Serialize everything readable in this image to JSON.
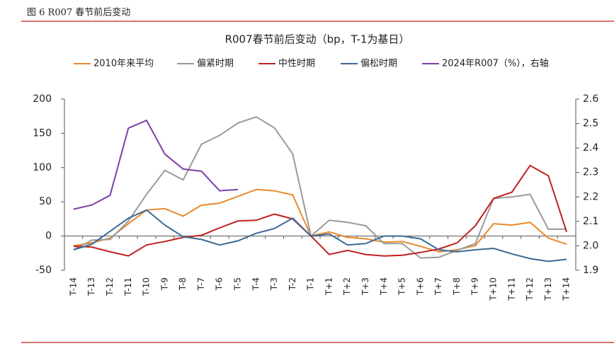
{
  "header": "图 6 R007 春节前后变动",
  "chart_data": {
    "type": "line",
    "title": "R007春节前后变动（bp，T-1为基日）",
    "categories": [
      "T-14",
      "T-13",
      "T-12",
      "T-11",
      "T-10",
      "T-9",
      "T-8",
      "T-7",
      "T-6",
      "T-5",
      "T-4",
      "T-3",
      "T-2",
      "T-1",
      "T+1",
      "T+2",
      "T+3",
      "T+4",
      "T+5",
      "T+6",
      "T+7",
      "T+8",
      "T+9",
      "T+10",
      "T+11",
      "T+12",
      "T+13",
      "T+14"
    ],
    "series": [
      {
        "name": "2010年来平均",
        "color": "#e98a2c",
        "values": [
          -14,
          -10,
          -3,
          18,
          38,
          40,
          29,
          45,
          48,
          58,
          68,
          66,
          60,
          0,
          6,
          -2,
          -4,
          -9,
          -8,
          -15,
          -23,
          -20,
          -14,
          18,
          16,
          20,
          -3,
          -12
        ]
      },
      {
        "name": "偏紧时期",
        "color": "#9a9a9a",
        "values": [
          -20,
          -6,
          -5,
          22,
          61,
          96,
          82,
          134,
          147,
          165,
          174,
          158,
          120,
          0,
          23,
          20,
          15,
          -11,
          -11,
          -32,
          -31,
          -21,
          -11,
          55,
          57,
          61,
          10,
          10
        ]
      },
      {
        "name": "中性时期",
        "color": "#c0201f",
        "values": [
          -15,
          -16,
          -23,
          -29,
          -13,
          -8,
          -2,
          1,
          12,
          22,
          23,
          32,
          25,
          0,
          -27,
          -21,
          -27,
          -29,
          -28,
          -24,
          -19,
          -10,
          15,
          55,
          64,
          103,
          88,
          6
        ]
      },
      {
        "name": "偏松时期",
        "color": "#3d6a93",
        "values": [
          -20,
          -12,
          7,
          26,
          38,
          16,
          -1,
          -5,
          -13,
          -7,
          4,
          11,
          26,
          0,
          3,
          -13,
          -11,
          0,
          0,
          -4,
          -20,
          -23,
          -20,
          -18,
          -26,
          -33,
          -37,
          -34
        ]
      },
      {
        "name": "2024年R007（%），右轴",
        "color": "#7b3fa8",
        "axis": "y2",
        "values": [
          2.15,
          2.167,
          2.207,
          2.481,
          2.513,
          2.375,
          2.314,
          2.305,
          2.225,
          2.23,
          null,
          null,
          null,
          null,
          null,
          null,
          null,
          null,
          null,
          null,
          null,
          null,
          null,
          null,
          null,
          null,
          null,
          null
        ]
      }
    ],
    "ylim": [
      -50,
      200
    ],
    "yticks": [
      -50,
      0,
      50,
      100,
      150,
      200
    ],
    "y2lim": [
      1.9,
      2.6
    ],
    "y2ticks": [
      1.9,
      {
        "value": 2,
        "label": "2.0"
      },
      2.1,
      2.2,
      2.3,
      2.4,
      2.5,
      2.6
    ],
    "legend": "top",
    "grid": false
  }
}
